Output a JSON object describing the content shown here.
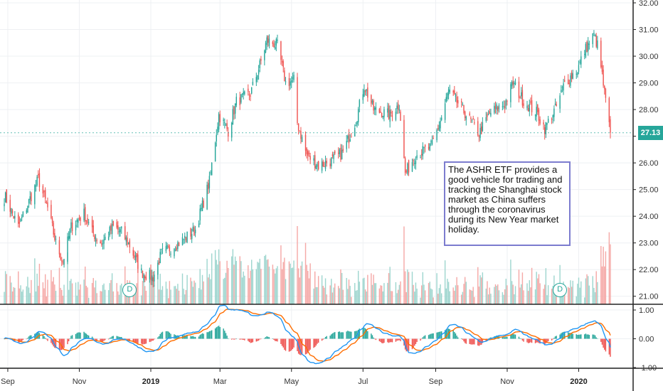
{
  "chart_data": [
    {
      "type": "candlestick",
      "ylim": [
        20.7,
        32.0
      ],
      "y_ticks": [
        "32.00",
        "31.00",
        "30.00",
        "29.00",
        "28.00",
        "27.00",
        "26.00",
        "25.00",
        "24.00",
        "23.00",
        "22.00",
        "21.00"
      ],
      "y_tick_values": [
        32,
        31,
        30,
        29,
        28,
        27,
        26,
        25,
        24,
        23,
        22,
        21
      ],
      "x_ticks": [
        "Sep",
        "Nov",
        "2019",
        "Mar",
        "May",
        "Jul",
        "Sep",
        "Nov",
        "2020"
      ],
      "x_tick_dates": [
        "2018-09-01",
        "2018-11-01",
        "2019-01-01",
        "2019-03-01",
        "2019-05-01",
        "2019-07-01",
        "2019-09-01",
        "2019-11-01",
        "2020-01-01"
      ],
      "date_range": [
        "2018-08-29",
        "2020-01-28"
      ],
      "close_anchors": [
        [
          "2018-08-30",
          24.7
        ],
        [
          "2018-09-10",
          23.6
        ],
        [
          "2018-09-27",
          25.4
        ],
        [
          "2018-10-05",
          24.3
        ],
        [
          "2018-10-12",
          23.0
        ],
        [
          "2018-10-18",
          22.3
        ],
        [
          "2018-10-25",
          23.6
        ],
        [
          "2018-11-05",
          24.1
        ],
        [
          "2018-11-12",
          23.4
        ],
        [
          "2018-11-20",
          23.0
        ],
        [
          "2018-11-30",
          23.6
        ],
        [
          "2018-12-07",
          23.4
        ],
        [
          "2018-12-14",
          22.9
        ],
        [
          "2018-12-24",
          21.9
        ],
        [
          "2019-01-03",
          21.7
        ],
        [
          "2019-01-10",
          22.6
        ],
        [
          "2019-01-25",
          23.0
        ],
        [
          "2019-02-08",
          23.5
        ],
        [
          "2019-02-20",
          25.3
        ],
        [
          "2019-02-28",
          27.8
        ],
        [
          "2019-03-08",
          27.2
        ],
        [
          "2019-03-15",
          28.3
        ],
        [
          "2019-03-27",
          28.6
        ],
        [
          "2019-04-05",
          29.8
        ],
        [
          "2019-04-10",
          30.6
        ],
        [
          "2019-04-19",
          30.4
        ],
        [
          "2019-04-26",
          29.0
        ],
        [
          "2019-05-03",
          29.1
        ],
        [
          "2019-05-06",
          27.5
        ],
        [
          "2019-05-14",
          26.3
        ],
        [
          "2019-05-24",
          25.9
        ],
        [
          "2019-06-05",
          26.1
        ],
        [
          "2019-06-14",
          26.4
        ],
        [
          "2019-06-25",
          27.6
        ],
        [
          "2019-07-02",
          28.9
        ],
        [
          "2019-07-10",
          28.0
        ],
        [
          "2019-07-24",
          27.8
        ],
        [
          "2019-08-01",
          28.2
        ],
        [
          "2019-08-06",
          25.6
        ],
        [
          "2019-08-15",
          26.3
        ],
        [
          "2019-08-28",
          26.6
        ],
        [
          "2019-09-06",
          27.7
        ],
        [
          "2019-09-12",
          28.7
        ],
        [
          "2019-09-24",
          28.0
        ],
        [
          "2019-10-08",
          27.1
        ],
        [
          "2019-10-18",
          27.9
        ],
        [
          "2019-10-30",
          28.2
        ],
        [
          "2019-11-06",
          29.0
        ],
        [
          "2019-11-15",
          28.3
        ],
        [
          "2019-11-26",
          27.9
        ],
        [
          "2019-12-03",
          27.3
        ],
        [
          "2019-12-13",
          28.1
        ],
        [
          "2019-12-20",
          29.0
        ],
        [
          "2019-12-31",
          29.5
        ],
        [
          "2020-01-06",
          30.2
        ],
        [
          "2020-01-14",
          30.8
        ],
        [
          "2020-01-17",
          30.4
        ],
        [
          "2020-01-20",
          29.6
        ],
        [
          "2020-01-23",
          28.6
        ],
        [
          "2020-01-28",
          27.13
        ]
      ],
      "last_price": "27.13",
      "dividend_markers": [
        {
          "date": "2018-12-14",
          "label": "D"
        },
        {
          "date": "2019-12-16",
          "label": "D"
        }
      ]
    },
    {
      "type": "macd",
      "ylim": [
        -1.0,
        1.1
      ],
      "y_ticks": [
        "1.00",
        "0.00",
        "-1.00"
      ],
      "y_tick_values": [
        1.0,
        0.0,
        -1.0
      ],
      "colors": {
        "macd": "#2196f3",
        "signal": "#ff6d00",
        "hist_pos": "#26a69a",
        "hist_neg": "#ef5350"
      }
    }
  ],
  "colors": {
    "up": "#26a69a",
    "down": "#ef5350",
    "vol_up": "#9fd6cf",
    "vol_down": "#f5a9a7",
    "grid": "#eef0f3"
  },
  "annotation": {
    "text": "The ASHR ETF provides a good vehicle for trading and tracking the Shanghai stock market as China suffers through the coronavirus during its New Year market holiday."
  }
}
